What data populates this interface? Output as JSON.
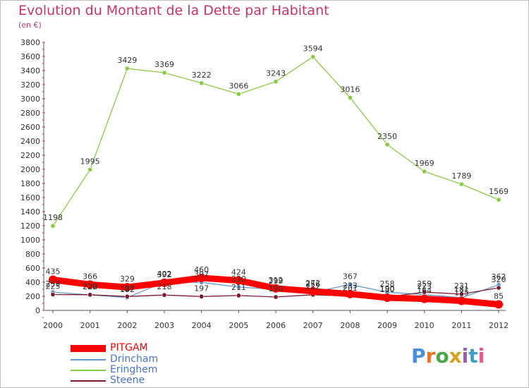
{
  "header": {
    "title": "Evolution du Montant de la Dette par Habitant",
    "unit": "(en €)"
  },
  "logo": {
    "text": "Proxiti",
    "letters": [
      "P",
      "r",
      "o",
      "x",
      "i",
      "t",
      "i"
    ],
    "colors": [
      "#4a90d9",
      "#e8732a",
      "#4aa84a",
      "#d6a21e",
      "#9b59b6",
      "#3aa0c8",
      "#e05a8a"
    ]
  },
  "chart_data": {
    "type": "line",
    "title": "Evolution du Montant de la Dette par Habitant",
    "ylabel": "(en €)",
    "xlabel": "",
    "x": [
      "2000",
      "2001",
      "2002",
      "2003",
      "2004",
      "2005",
      "2006",
      "2007",
      "2008",
      "2009",
      "2010",
      "2011",
      "2012"
    ],
    "ylim": [
      0,
      3800
    ],
    "yticks": [
      0,
      200,
      400,
      600,
      800,
      1000,
      1200,
      1400,
      1600,
      1800,
      2000,
      2200,
      2400,
      2600,
      2800,
      3000,
      3200,
      3400,
      3600,
      3800
    ],
    "grid": false,
    "legend_position": "bottom-left",
    "series": [
      {
        "name": "PITGAM",
        "color": "#ff0000",
        "values": [
          435,
          366,
          329,
          392,
          460,
          424,
          312,
          272,
          233,
          180,
          164,
          135,
          85
        ]
      },
      {
        "name": "Drincham",
        "color": "#6699cc",
        "values": [
          259,
          220,
          182,
          402,
          397,
          330,
          299,
          256,
          367,
          258,
          223,
          181,
          362
        ]
      },
      {
        "name": "Eringhem",
        "color": "#88cc44",
        "values": [
          1198,
          1995,
          3429,
          3369,
          3222,
          3066,
          3243,
          3594,
          3016,
          2350,
          1969,
          1789,
          1569
        ]
      },
      {
        "name": "Steene",
        "color": "#7a1c2e",
        "values": [
          225,
          222,
          197,
          218,
          197,
          211,
          190,
          222,
          201,
          190,
          259,
          231,
          320
        ]
      }
    ]
  }
}
